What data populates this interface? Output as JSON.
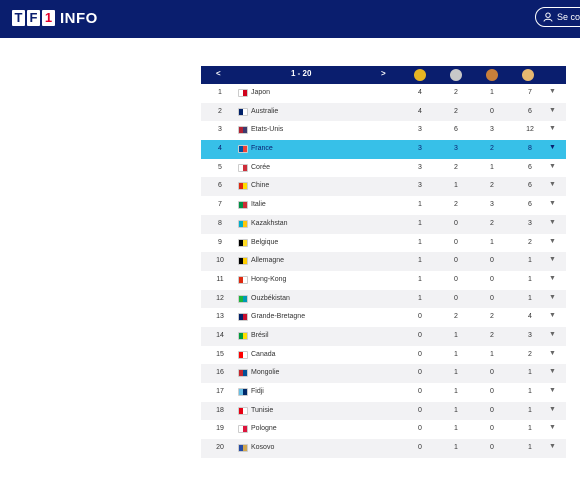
{
  "header": {
    "logo_text": "INFO",
    "logo_letters": [
      "T",
      "F",
      "1"
    ],
    "login_label": "Se co"
  },
  "table": {
    "nav": {
      "prev": "<",
      "range": "1 - 20",
      "next": ">"
    },
    "medal_icons": [
      "gold-medal-icon",
      "silver-medal-icon",
      "bronze-medal-icon",
      "total-medal-icon"
    ],
    "highlight_row": 3,
    "rows": [
      {
        "rank": "1",
        "country": "Japon",
        "gold": "4",
        "silver": "2",
        "bronze": "1",
        "total": "7",
        "flag": [
          "#ffffff",
          "#d0021b"
        ]
      },
      {
        "rank": "2",
        "country": "Australie",
        "gold": "4",
        "silver": "2",
        "bronze": "0",
        "total": "6",
        "flag": [
          "#012169",
          "#ffffff"
        ]
      },
      {
        "rank": "3",
        "country": "Etats-Unis",
        "gold": "3",
        "silver": "6",
        "bronze": "3",
        "total": "12",
        "flag": [
          "#b22234",
          "#3c3b6e"
        ]
      },
      {
        "rank": "4",
        "country": "France",
        "gold": "3",
        "silver": "3",
        "bronze": "2",
        "total": "8",
        "flag": [
          "#0055a4",
          "#ef4135"
        ]
      },
      {
        "rank": "5",
        "country": "Corée",
        "gold": "3",
        "silver": "2",
        "bronze": "1",
        "total": "6",
        "flag": [
          "#ffffff",
          "#cd2e3a"
        ]
      },
      {
        "rank": "6",
        "country": "Chine",
        "gold": "3",
        "silver": "1",
        "bronze": "2",
        "total": "6",
        "flag": [
          "#de2910",
          "#ffde00"
        ]
      },
      {
        "rank": "7",
        "country": "Italie",
        "gold": "1",
        "silver": "2",
        "bronze": "3",
        "total": "6",
        "flag": [
          "#009246",
          "#ce2b37"
        ]
      },
      {
        "rank": "8",
        "country": "Kazakhstan",
        "gold": "1",
        "silver": "0",
        "bronze": "2",
        "total": "3",
        "flag": [
          "#00afca",
          "#fec50c"
        ]
      },
      {
        "rank": "9",
        "country": "Belgique",
        "gold": "1",
        "silver": "0",
        "bronze": "1",
        "total": "2",
        "flag": [
          "#000000",
          "#fdda24"
        ]
      },
      {
        "rank": "10",
        "country": "Allemagne",
        "gold": "1",
        "silver": "0",
        "bronze": "0",
        "total": "1",
        "flag": [
          "#000000",
          "#ffce00"
        ]
      },
      {
        "rank": "11",
        "country": "Hong-Kong",
        "gold": "1",
        "silver": "0",
        "bronze": "0",
        "total": "1",
        "flag": [
          "#de2910",
          "#ffffff"
        ]
      },
      {
        "rank": "12",
        "country": "Ouzbékistan",
        "gold": "1",
        "silver": "0",
        "bronze": "0",
        "total": "1",
        "flag": [
          "#1eb53a",
          "#0099b5"
        ]
      },
      {
        "rank": "13",
        "country": "Grande-Bretagne",
        "gold": "0",
        "silver": "2",
        "bronze": "2",
        "total": "4",
        "flag": [
          "#012169",
          "#c8102e"
        ]
      },
      {
        "rank": "14",
        "country": "Brésil",
        "gold": "0",
        "silver": "1",
        "bronze": "2",
        "total": "3",
        "flag": [
          "#009c3b",
          "#ffdf00"
        ]
      },
      {
        "rank": "15",
        "country": "Canada",
        "gold": "0",
        "silver": "1",
        "bronze": "1",
        "total": "2",
        "flag": [
          "#ff0000",
          "#ffffff"
        ]
      },
      {
        "rank": "16",
        "country": "Mongolie",
        "gold": "0",
        "silver": "1",
        "bronze": "0",
        "total": "1",
        "flag": [
          "#c4272f",
          "#015197"
        ]
      },
      {
        "rank": "17",
        "country": "Fidji",
        "gold": "0",
        "silver": "1",
        "bronze": "0",
        "total": "1",
        "flag": [
          "#68bfe5",
          "#002868"
        ]
      },
      {
        "rank": "18",
        "country": "Tunisie",
        "gold": "0",
        "silver": "1",
        "bronze": "0",
        "total": "1",
        "flag": [
          "#e70013",
          "#ffffff"
        ]
      },
      {
        "rank": "19",
        "country": "Pologne",
        "gold": "0",
        "silver": "1",
        "bronze": "0",
        "total": "1",
        "flag": [
          "#ffffff",
          "#dc143c"
        ]
      },
      {
        "rank": "20",
        "country": "Kosovo",
        "gold": "0",
        "silver": "1",
        "bronze": "0",
        "total": "1",
        "flag": [
          "#244aa5",
          "#d0a650"
        ]
      }
    ],
    "caret": "▼"
  },
  "colors": {
    "header_bg": "#0a1e6e",
    "highlight": "#37c0e8"
  }
}
